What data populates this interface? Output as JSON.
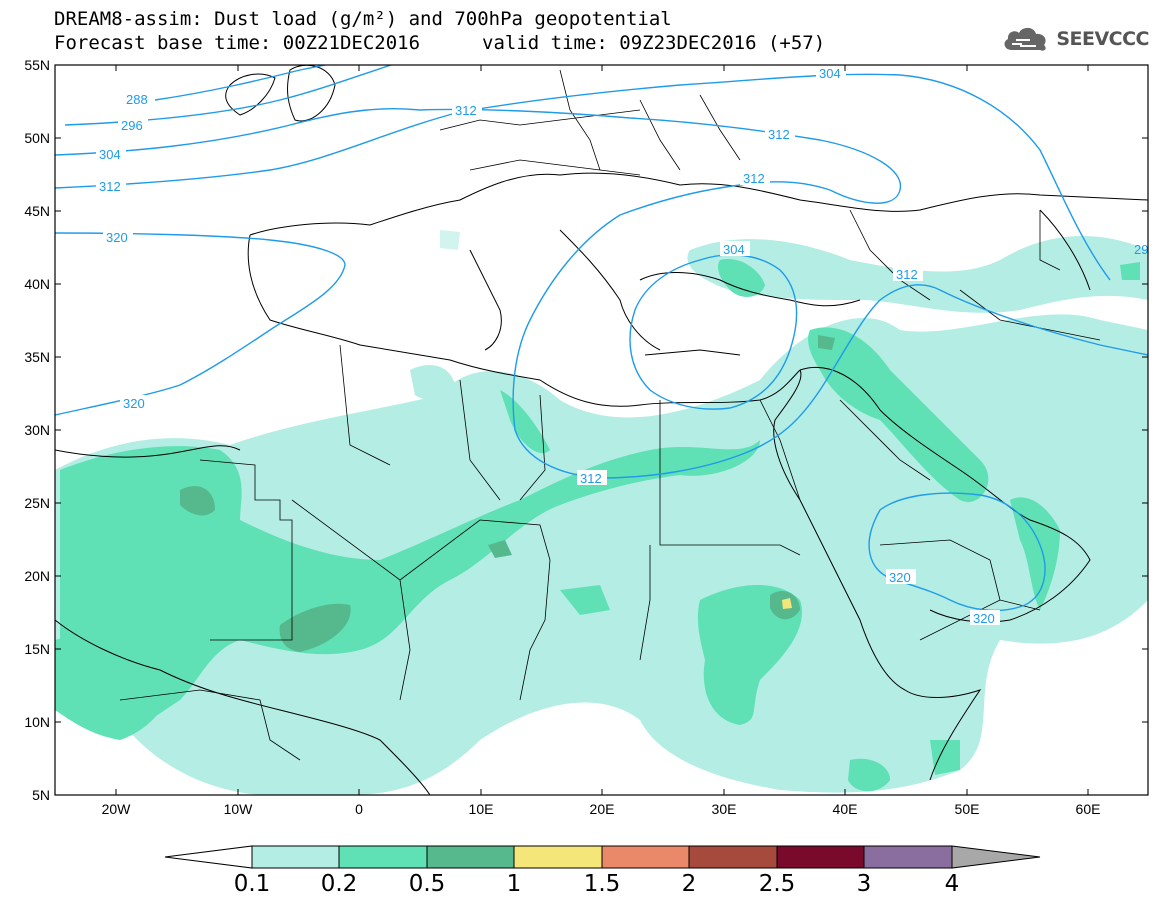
{
  "header": {
    "title_line1": "DREAM8-assim: Dust load (g/m²) and 700hPa geopotential",
    "base_time": "Forecast base time: 00Z21DEC2016",
    "valid_time": "valid time: 09Z23DEC2016 (+57)"
  },
  "logo": {
    "text": "SEEVCCC",
    "icon": "cloud-icon"
  },
  "axes": {
    "lat_labels": [
      "55N",
      "50N",
      "45N",
      "40N",
      "35N",
      "30N",
      "25N",
      "20N",
      "15N",
      "10N",
      "5N"
    ],
    "lon_labels": [
      "20W",
      "10W",
      "0",
      "10E",
      "20E",
      "30E",
      "40E",
      "50E",
      "60E"
    ]
  },
  "contours": {
    "labels": [
      "288",
      "296",
      "304",
      "312",
      "320",
      "312",
      "304",
      "312",
      "312",
      "304",
      "312",
      "312",
      "320",
      "320",
      "320",
      "29"
    ]
  },
  "colorbar": {
    "ticks": [
      "0.1",
      "0.2",
      "0.5",
      "1",
      "1.5",
      "2",
      "2.5",
      "3",
      "4"
    ],
    "colors": [
      "#ffffff",
      "#b3ede4",
      "#5fe0b5",
      "#56b98e",
      "#f5e67a",
      "#e9896a",
      "#a64a3e",
      "#7a0a2c",
      "#8a6ea0",
      "#a8a8a8"
    ]
  },
  "dust_colors": {
    "low": "#b3ede4",
    "mid": "#5fe0b5",
    "high": "#56b98e",
    "very_high": "#f5e67a"
  },
  "contour_color": "#1f9bea"
}
